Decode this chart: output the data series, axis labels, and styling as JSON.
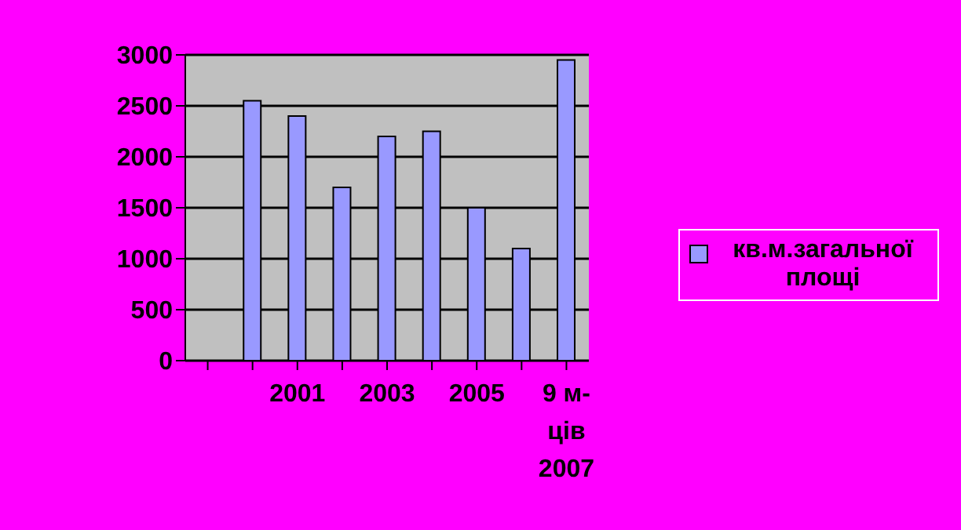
{
  "chart_data": {
    "type": "bar",
    "categories": [
      null,
      null,
      "2001",
      null,
      "2003",
      null,
      "2005",
      null,
      "9 м-ців 2007"
    ],
    "series": [
      {
        "name": "кв.м.загальної площі",
        "color": "#9999ff",
        "values": [
          null,
          2550,
          2400,
          1700,
          2200,
          2250,
          1500,
          1100,
          2950
        ]
      }
    ],
    "ylim": [
      0,
      3000
    ],
    "yticks": [
      0,
      500,
      1000,
      1500,
      2000,
      2500,
      3000
    ],
    "grid": "y",
    "legend": "right"
  }
}
